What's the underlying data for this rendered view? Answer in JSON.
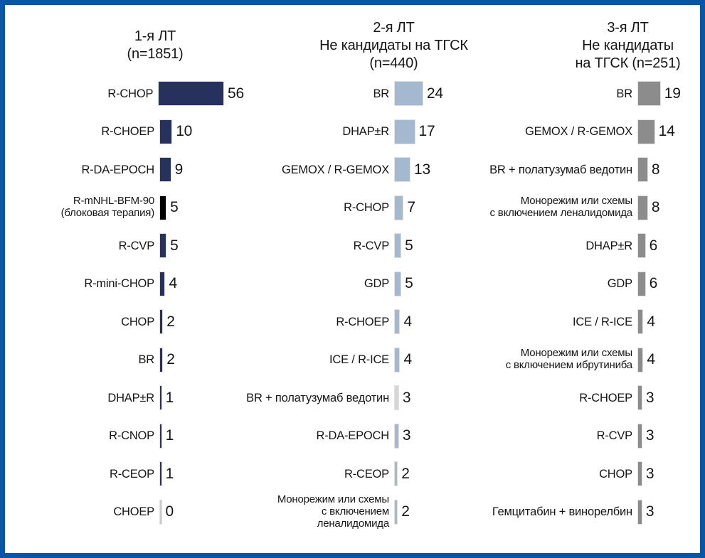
{
  "frame": {
    "border_color": "#0b55a6",
    "background": "#ffffff"
  },
  "chart_data": {
    "type": "bar",
    "orientation": "horizontal",
    "grid": false,
    "legend": false,
    "value_labels": "right of bars",
    "columns": [
      {
        "id": "first-line",
        "header": "1-я ЛТ\n(n=1851)",
        "bar_color": "#27315e",
        "items": [
          {
            "label": "R-CHOP",
            "value": 56
          },
          {
            "label": "R-CHOEP",
            "value": 10
          },
          {
            "label": "R-DA-EPOCH",
            "value": 9
          },
          {
            "label": "R-mNHL-BFM-90\n(блоковая терапия)",
            "value": 5,
            "color": "#000000"
          },
          {
            "label": "R-CVP",
            "value": 5
          },
          {
            "label": "R-mini-CHOP",
            "value": 4
          },
          {
            "label": "CHOP",
            "value": 2
          },
          {
            "label": "BR",
            "value": 2
          },
          {
            "label": "DHAP±R",
            "value": 1
          },
          {
            "label": "R-CNOP",
            "value": 1
          },
          {
            "label": "R-CEOP",
            "value": 1
          },
          {
            "label": "CHOEP",
            "value": 0,
            "color": "#c9c9c9"
          }
        ]
      },
      {
        "id": "second-line",
        "header": "2-я ЛТ\nНе кандидаты на ТГСК\n(n=440)",
        "bar_color": "#a4b8cf",
        "items": [
          {
            "label": "BR",
            "value": 24
          },
          {
            "label": "DHAP±R",
            "value": 17
          },
          {
            "label": "GEMOX / R-GEMOX",
            "value": 13
          },
          {
            "label": "R-CHOP",
            "value": 7
          },
          {
            "label": "R-CVP",
            "value": 5
          },
          {
            "label": "GDP",
            "value": 5
          },
          {
            "label": "R-CHOEP",
            "value": 4
          },
          {
            "label": "ICE / R-ICE",
            "value": 4
          },
          {
            "label": "BR + полатузумаб ведотин",
            "value": 3,
            "color": "#d6d6d6"
          },
          {
            "label": "R-DA-EPOCH",
            "value": 3
          },
          {
            "label": "R-CEOP",
            "value": 2
          },
          {
            "label": "Монорежим или схемы\nс включением\nленалидомида",
            "value": 2
          }
        ]
      },
      {
        "id": "third-line",
        "header": "3-я ЛТ\nНе кандидаты\nна ТГСК (n=251)",
        "bar_color": "#8c8c8c",
        "items": [
          {
            "label": "BR",
            "value": 19
          },
          {
            "label": "GEMOX / R-GEMOX",
            "value": 14
          },
          {
            "label": "BR + полатузумаб ведотин",
            "value": 8
          },
          {
            "label": "Монорежим или схемы\nс включением леналидомида",
            "value": 8
          },
          {
            "label": "DHAP±R",
            "value": 6
          },
          {
            "label": "GDP",
            "value": 6
          },
          {
            "label": "ICE / R-ICE",
            "value": 4
          },
          {
            "label": "Монорежим или схемы\nс включением ибрутиниба",
            "value": 4
          },
          {
            "label": "R-CHOEP",
            "value": 3
          },
          {
            "label": "R-CVP",
            "value": 3
          },
          {
            "label": "CHOP",
            "value": 3
          },
          {
            "label": "Гемцитабин + винорелбин",
            "value": 3
          }
        ]
      }
    ]
  }
}
